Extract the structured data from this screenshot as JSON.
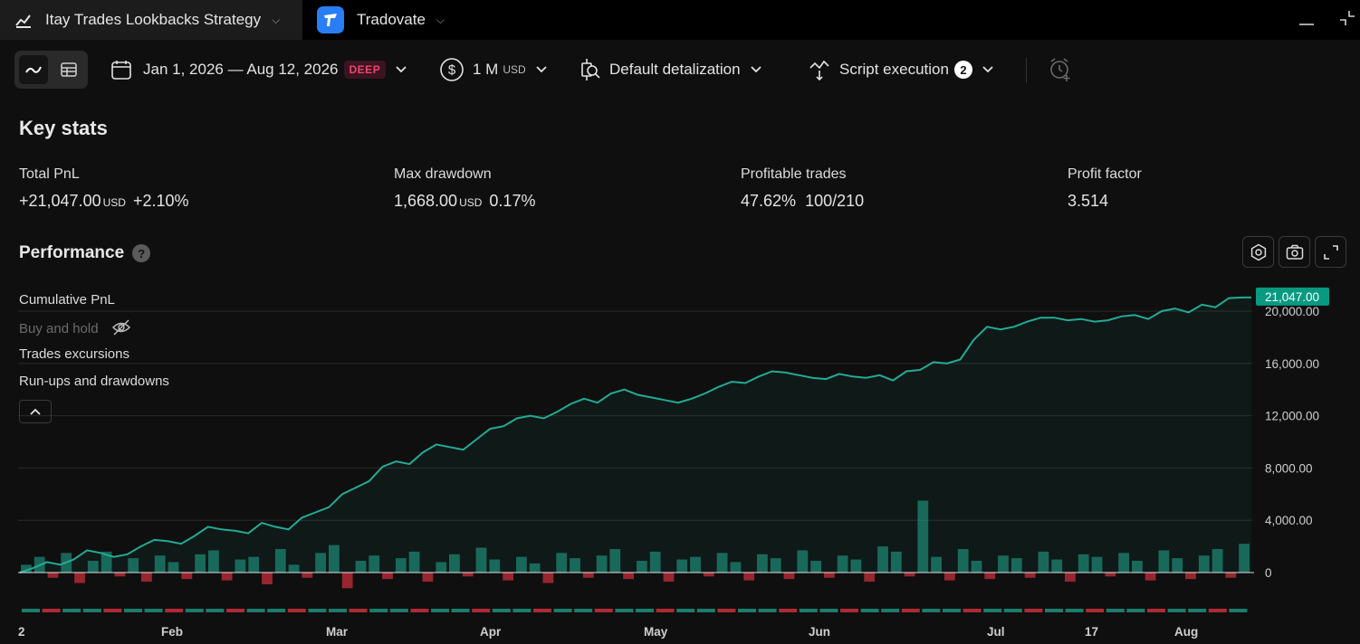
{
  "tabs": [
    {
      "label": "Itay Trades Lookbacks Strategy"
    },
    {
      "label": "Tradovate"
    }
  ],
  "toolbar": {
    "date_range": "Jan 1, 2026 — Aug 12, 2026",
    "deep_badge": "DEEP",
    "capital": "1 M",
    "capital_unit": "USD",
    "detalization": "Default detalization",
    "script_execution": "Script execution",
    "script_execution_count": "2"
  },
  "key_stats": {
    "title": "Key stats",
    "items": [
      {
        "label": "Total PnL",
        "value": "+21,047.00",
        "unit": "USD",
        "extra": "+2.10%"
      },
      {
        "label": "Max drawdown",
        "value": "1,668.00",
        "unit": "USD",
        "extra": "0.17%"
      },
      {
        "label": "Profitable trades",
        "value": "47.62%",
        "extra": "100/210"
      },
      {
        "label": "Profit factor",
        "value": "3.514"
      }
    ]
  },
  "performance": {
    "title": "Performance",
    "help": "?",
    "legend": [
      "Cumulative PnL",
      "Buy and hold",
      "Trades excursions",
      "Run-ups and drawdowns"
    ]
  },
  "colors": {
    "line": "#22ab94",
    "positive": "#22ab94",
    "negative": "#f23645",
    "background": "#0f0f0f"
  },
  "chart_data": {
    "type": "line",
    "series_name": "Cumulative PnL",
    "y_ticks": [
      {
        "value": 20000,
        "label": "20,000.00"
      },
      {
        "value": 16000,
        "label": "16,000.00"
      },
      {
        "value": 12000,
        "label": "12,000.00"
      },
      {
        "value": 8000,
        "label": "8,000.00"
      },
      {
        "value": 4000,
        "label": "4,000.00"
      },
      {
        "value": 0,
        "label": "0"
      }
    ],
    "ylim": [
      -3000,
      21500
    ],
    "x_ticks": [
      "2",
      "Feb",
      "Mar",
      "Apr",
      "May",
      "Jun",
      "Jul",
      "17",
      "Aug"
    ],
    "last_value_label": "21,047.00",
    "cumulative_pnl": [
      0,
      350,
      800,
      600,
      1000,
      1700,
      1500,
      1200,
      1400,
      2000,
      2500,
      2400,
      2200,
      2800,
      3500,
      3300,
      3200,
      3000,
      3800,
      3500,
      3300,
      4200,
      4600,
      5000,
      6000,
      6500,
      7000,
      8100,
      8500,
      8300,
      9200,
      9800,
      9600,
      9400,
      10200,
      11000,
      11200,
      11800,
      12000,
      11800,
      12300,
      12900,
      13300,
      13000,
      13700,
      14000,
      13600,
      13400,
      13200,
      13000,
      13300,
      13700,
      14200,
      14600,
      14500,
      15000,
      15400,
      15300,
      15100,
      14900,
      14800,
      15200,
      15000,
      14900,
      15100,
      14700,
      15400,
      15500,
      16100,
      16000,
      16300,
      17800,
      18800,
      18600,
      18800,
      19200,
      19500,
      19500,
      19300,
      19400,
      19200,
      19300,
      19600,
      19700,
      19400,
      20000,
      20200,
      19900,
      20500,
      20300,
      21000,
      21047
    ],
    "trade_bars": [
      600,
      1200,
      -400,
      1500,
      -800,
      900,
      1600,
      -300,
      1100,
      -700,
      1300,
      800,
      -500,
      1400,
      1700,
      -600,
      1000,
      1200,
      -900,
      1800,
      600,
      -400,
      1500,
      2100,
      -1200,
      900,
      1300,
      -500,
      1100,
      1600,
      -700,
      800,
      1400,
      -300,
      1900,
      1000,
      -600,
      1200,
      700,
      -800,
      1500,
      1100,
      -400,
      1300,
      1800,
      -500,
      900,
      1600,
      -700,
      1000,
      1200,
      -300,
      1500,
      800,
      -600,
      1400,
      1100,
      -500,
      1700,
      900,
      -400,
      1300,
      1000,
      -700,
      2000,
      1600,
      -300,
      5500,
      1200,
      -600,
      1800,
      900,
      -500,
      1300,
      1100,
      -400,
      1600,
      1000,
      -700,
      1400,
      1200,
      -300,
      1500,
      900,
      -600,
      1700,
      1100,
      -500,
      1300,
      1800,
      -400,
      2200
    ]
  }
}
